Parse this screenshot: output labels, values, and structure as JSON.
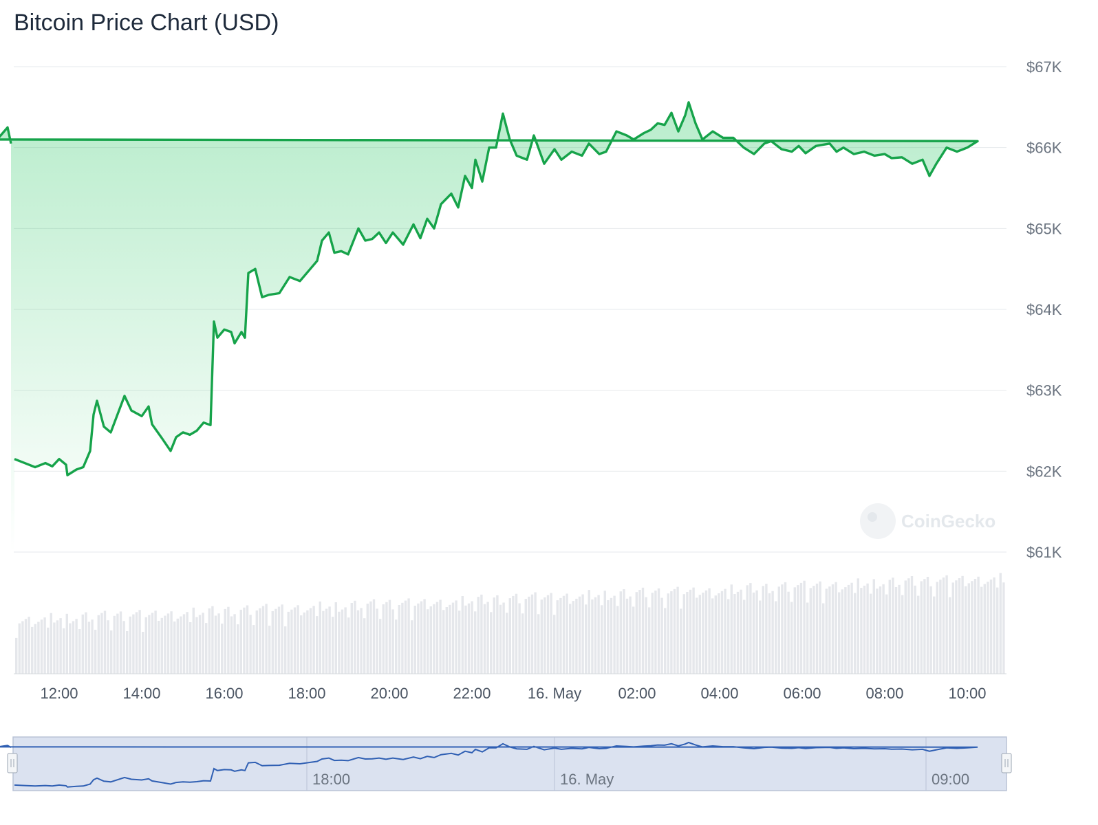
{
  "title": "Bitcoin Price Chart (USD)",
  "watermark": "CoinGecko",
  "colors": {
    "line": "#16a34a",
    "fill": "#22c55e",
    "grid": "#e6e9ec",
    "volume": "#e5e7eb",
    "navigator_fill": "#dbe2f0",
    "navigator_line": "#2f5fb3"
  },
  "chart_data": {
    "type": "area",
    "y_unit": "USD",
    "ylim": [
      61000,
      67000
    ],
    "y_ticks": [
      {
        "value": 67000,
        "label": "$67K"
      },
      {
        "value": 66000,
        "label": "$66K"
      },
      {
        "value": 65000,
        "label": "$65K"
      },
      {
        "value": 64000,
        "label": "$64K"
      },
      {
        "value": 63000,
        "label": "$63K"
      },
      {
        "value": 62000,
        "label": "$62K"
      },
      {
        "value": 61000,
        "label": "$61K"
      }
    ],
    "x_ticks": [
      {
        "time": "12:00",
        "label": "12:00"
      },
      {
        "time": "14:00",
        "label": "14:00"
      },
      {
        "time": "16:00",
        "label": "16:00"
      },
      {
        "time": "18:00",
        "label": "18:00"
      },
      {
        "time": "20:00",
        "label": "20:00"
      },
      {
        "time": "22:00",
        "label": "22:00"
      },
      {
        "time": "00:00",
        "label": "16. May"
      },
      {
        "time": "02:00",
        "label": "02:00"
      },
      {
        "time": "04:00",
        "label": "04:00"
      },
      {
        "time": "06:00",
        "label": "06:00"
      },
      {
        "time": "08:00",
        "label": "08:00"
      },
      {
        "time": "10:00",
        "label": "10:00"
      }
    ],
    "navigator_labels": [
      {
        "time": "18:00",
        "label": "18:00"
      },
      {
        "time": "00:00",
        "label": "16. May"
      },
      {
        "time": "09:00",
        "label": "09:00"
      }
    ],
    "series": [
      {
        "values": [
          [
            "10:55",
            62150
          ],
          [
            "11:10",
            62100
          ],
          [
            "11:25",
            62050
          ],
          [
            "11:40",
            62100
          ],
          [
            "11:50",
            62060
          ],
          [
            "12:00",
            62150
          ],
          [
            "12:10",
            62080
          ],
          [
            "12:12",
            61950
          ],
          [
            "12:25",
            62020
          ],
          [
            "12:35",
            62050
          ],
          [
            "12:45",
            62250
          ],
          [
            "12:50",
            62700
          ],
          [
            "12:55",
            62870
          ],
          [
            "13:05",
            62550
          ],
          [
            "13:15",
            62480
          ],
          [
            "13:35",
            62930
          ],
          [
            "13:45",
            62750
          ],
          [
            "14:00",
            62680
          ],
          [
            "14:10",
            62800
          ],
          [
            "14:15",
            62580
          ],
          [
            "14:30",
            62400
          ],
          [
            "14:42",
            62250
          ],
          [
            "14:50",
            62420
          ],
          [
            "15:00",
            62480
          ],
          [
            "15:10",
            62450
          ],
          [
            "15:20",
            62500
          ],
          [
            "15:30",
            62600
          ],
          [
            "15:40",
            62570
          ],
          [
            "15:45",
            63850
          ],
          [
            "15:50",
            63650
          ],
          [
            "16:00",
            63750
          ],
          [
            "16:10",
            63720
          ],
          [
            "16:15",
            63580
          ],
          [
            "16:25",
            63720
          ],
          [
            "16:30",
            63650
          ],
          [
            "16:35",
            64450
          ],
          [
            "16:45",
            64500
          ],
          [
            "16:55",
            64150
          ],
          [
            "17:05",
            64180
          ],
          [
            "17:20",
            64200
          ],
          [
            "17:35",
            64400
          ],
          [
            "17:50",
            64350
          ],
          [
            "18:05",
            64500
          ],
          [
            "18:15",
            64600
          ],
          [
            "18:22",
            64850
          ],
          [
            "18:32",
            64950
          ],
          [
            "18:40",
            64700
          ],
          [
            "18:50",
            64720
          ],
          [
            "19:00",
            64680
          ],
          [
            "19:15",
            65000
          ],
          [
            "19:25",
            64850
          ],
          [
            "19:35",
            64870
          ],
          [
            "19:45",
            64950
          ],
          [
            "19:55",
            64820
          ],
          [
            "20:05",
            64950
          ],
          [
            "20:20",
            64800
          ],
          [
            "20:35",
            65050
          ],
          [
            "20:45",
            64880
          ],
          [
            "20:55",
            65120
          ],
          [
            "21:05",
            65000
          ],
          [
            "21:15",
            65300
          ],
          [
            "21:30",
            65430
          ],
          [
            "21:40",
            65260
          ],
          [
            "21:50",
            65650
          ],
          [
            "22:00",
            65500
          ],
          [
            "22:05",
            65850
          ],
          [
            "22:15",
            65580
          ],
          [
            "22:25",
            66000
          ],
          [
            "22:35",
            66000
          ],
          [
            "22:45",
            66420
          ],
          [
            "22:55",
            66100
          ],
          [
            "23:05",
            65900
          ],
          [
            "23:20",
            65850
          ],
          [
            "23:30",
            66150
          ],
          [
            "23:45",
            65800
          ],
          [
            "00:00",
            65980
          ],
          [
            "00:10",
            65850
          ],
          [
            "00:25",
            65950
          ],
          [
            "00:40",
            65900
          ],
          [
            "00:50",
            66050
          ],
          [
            "01:05",
            65920
          ],
          [
            "01:15",
            65950
          ],
          [
            "01:30",
            66200
          ],
          [
            "01:45",
            66150
          ],
          [
            "01:55",
            66100
          ],
          [
            "02:10",
            66180
          ],
          [
            "02:20",
            66220
          ],
          [
            "02:30",
            66300
          ],
          [
            "02:40",
            66280
          ],
          [
            "02:50",
            66430
          ],
          [
            "03:00",
            66200
          ],
          [
            "03:10",
            66400
          ],
          [
            "03:15",
            66560
          ],
          [
            "03:25",
            66300
          ],
          [
            "03:35",
            66100
          ],
          [
            "03:50",
            66200
          ],
          [
            "04:05",
            66120
          ],
          [
            "04:20",
            66120
          ],
          [
            "04:35",
            66000
          ],
          [
            "04:50",
            65920
          ],
          [
            "05:05",
            66050
          ],
          [
            "05:15",
            66080
          ],
          [
            "05:30",
            65980
          ],
          [
            "05:45",
            65950
          ],
          [
            "05:55",
            66020
          ],
          [
            "06:05",
            65930
          ],
          [
            "06:20",
            66020
          ],
          [
            "06:40",
            66050
          ],
          [
            "06:50",
            65950
          ],
          [
            "07:00",
            66000
          ],
          [
            "07:15",
            65920
          ],
          [
            "07:30",
            65950
          ],
          [
            "07:45",
            65900
          ],
          [
            "08:00",
            65920
          ],
          [
            "08:10",
            65870
          ],
          [
            "08:25",
            65880
          ],
          [
            "08:40",
            65800
          ],
          [
            "08:55",
            65850
          ],
          [
            "09:05",
            65650
          ],
          [
            "09:15",
            65800
          ],
          [
            "09:30",
            66000
          ],
          [
            "09:45",
            65950
          ],
          [
            "10:00",
            66000
          ],
          [
            "10:15",
            66080
          ],
          [
            "10:30",
            66100
          ],
          [
            "10:40",
            66200
          ],
          [
            "10:45",
            66250
          ],
          [
            "10:50",
            66050
          ]
        ]
      }
    ]
  }
}
